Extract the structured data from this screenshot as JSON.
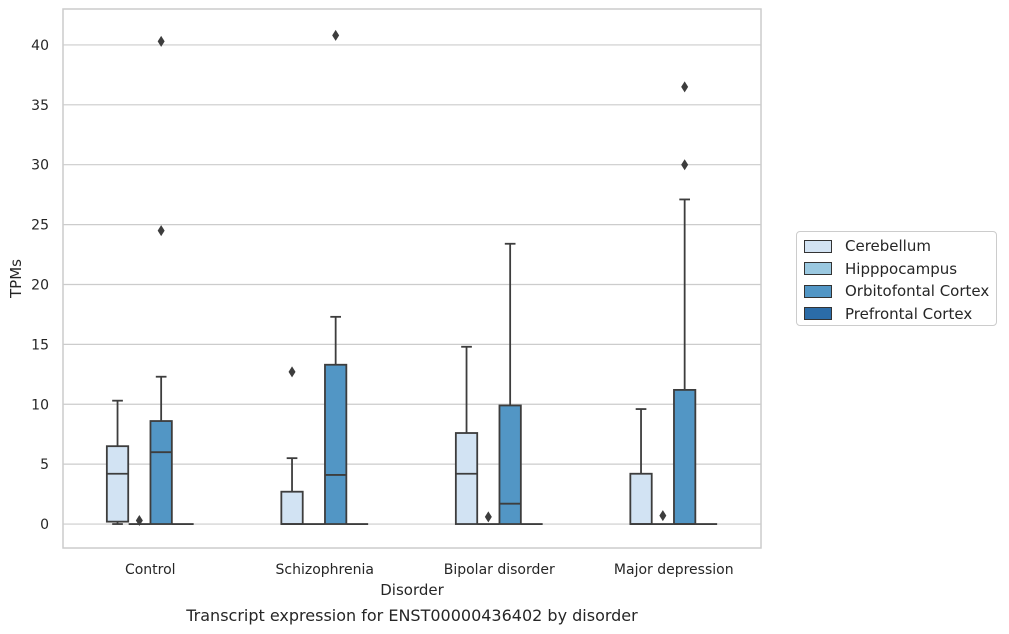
{
  "chart_data": {
    "type": "box",
    "title": "",
    "caption": "Transcript expression for ENST00000436402 by disorder",
    "xlabel": "Disorder",
    "ylabel": "TPMs",
    "categories": [
      "Control",
      "Schizophrenia",
      "Bipolar disorder",
      "Major depression"
    ],
    "ylim": [
      -2,
      43
    ],
    "yticks": [
      0,
      5,
      10,
      15,
      20,
      25,
      30,
      35,
      40
    ],
    "grid": "horizontal",
    "legend_position": "right",
    "series": [
      {
        "name": "Cerebellum",
        "color": "#d2e3f3",
        "boxes": [
          {
            "whisker_low": 0.0,
            "q1": 0.2,
            "median": 4.2,
            "q3": 6.5,
            "whisker_high": 10.3,
            "outliers": []
          },
          {
            "whisker_low": 0.0,
            "q1": 0.0,
            "median": 0.0,
            "q3": 2.7,
            "whisker_high": 5.5,
            "outliers": [
              12.7
            ]
          },
          {
            "whisker_low": 0.0,
            "q1": 0.0,
            "median": 4.2,
            "q3": 7.6,
            "whisker_high": 14.8,
            "outliers": []
          },
          {
            "whisker_low": 0.0,
            "q1": 0.0,
            "median": 0.0,
            "q3": 4.2,
            "whisker_high": 9.6,
            "outliers": []
          }
        ]
      },
      {
        "name": "Hipppocampus",
        "color": "#9ac8e0",
        "boxes": [
          {
            "whisker_low": 0.0,
            "q1": 0.0,
            "median": 0.0,
            "q3": 0.0,
            "whisker_high": 0.0,
            "outliers": [
              0.3
            ]
          },
          {
            "whisker_low": 0.0,
            "q1": 0.0,
            "median": 0.0,
            "q3": 0.0,
            "whisker_high": 0.0,
            "outliers": []
          },
          {
            "whisker_low": 0.0,
            "q1": 0.0,
            "median": 0.0,
            "q3": 0.0,
            "whisker_high": 0.0,
            "outliers": [
              0.6
            ]
          },
          {
            "whisker_low": 0.0,
            "q1": 0.0,
            "median": 0.0,
            "q3": 0.0,
            "whisker_high": 0.0,
            "outliers": [
              0.7
            ]
          }
        ]
      },
      {
        "name": "Orbitofontal Cortex",
        "color": "#5296c5",
        "boxes": [
          {
            "whisker_low": 0.0,
            "q1": 0.0,
            "median": 6.0,
            "q3": 8.6,
            "whisker_high": 12.3,
            "outliers": [
              24.5,
              40.3
            ]
          },
          {
            "whisker_low": 0.0,
            "q1": 0.0,
            "median": 4.1,
            "q3": 13.3,
            "whisker_high": 17.3,
            "outliers": [
              40.8
            ]
          },
          {
            "whisker_low": 0.0,
            "q1": 0.0,
            "median": 1.7,
            "q3": 9.9,
            "whisker_high": 23.4,
            "outliers": []
          },
          {
            "whisker_low": 0.0,
            "q1": 0.0,
            "median": 0.0,
            "q3": 11.2,
            "whisker_high": 27.1,
            "outliers": [
              30.0,
              36.5
            ]
          }
        ]
      },
      {
        "name": "Prefrontal Cortex",
        "color": "#2b6ca8",
        "boxes": [
          {
            "whisker_low": 0.0,
            "q1": 0.0,
            "median": 0.0,
            "q3": 0.0,
            "whisker_high": 0.0,
            "outliers": []
          },
          {
            "whisker_low": 0.0,
            "q1": 0.0,
            "median": 0.0,
            "q3": 0.0,
            "whisker_high": 0.0,
            "outliers": []
          },
          {
            "whisker_low": 0.0,
            "q1": 0.0,
            "median": 0.0,
            "q3": 0.0,
            "whisker_high": 0.0,
            "outliers": []
          },
          {
            "whisker_low": 0.0,
            "q1": 0.0,
            "median": 0.0,
            "q3": 0.0,
            "whisker_high": 0.0,
            "outliers": []
          }
        ]
      }
    ]
  }
}
